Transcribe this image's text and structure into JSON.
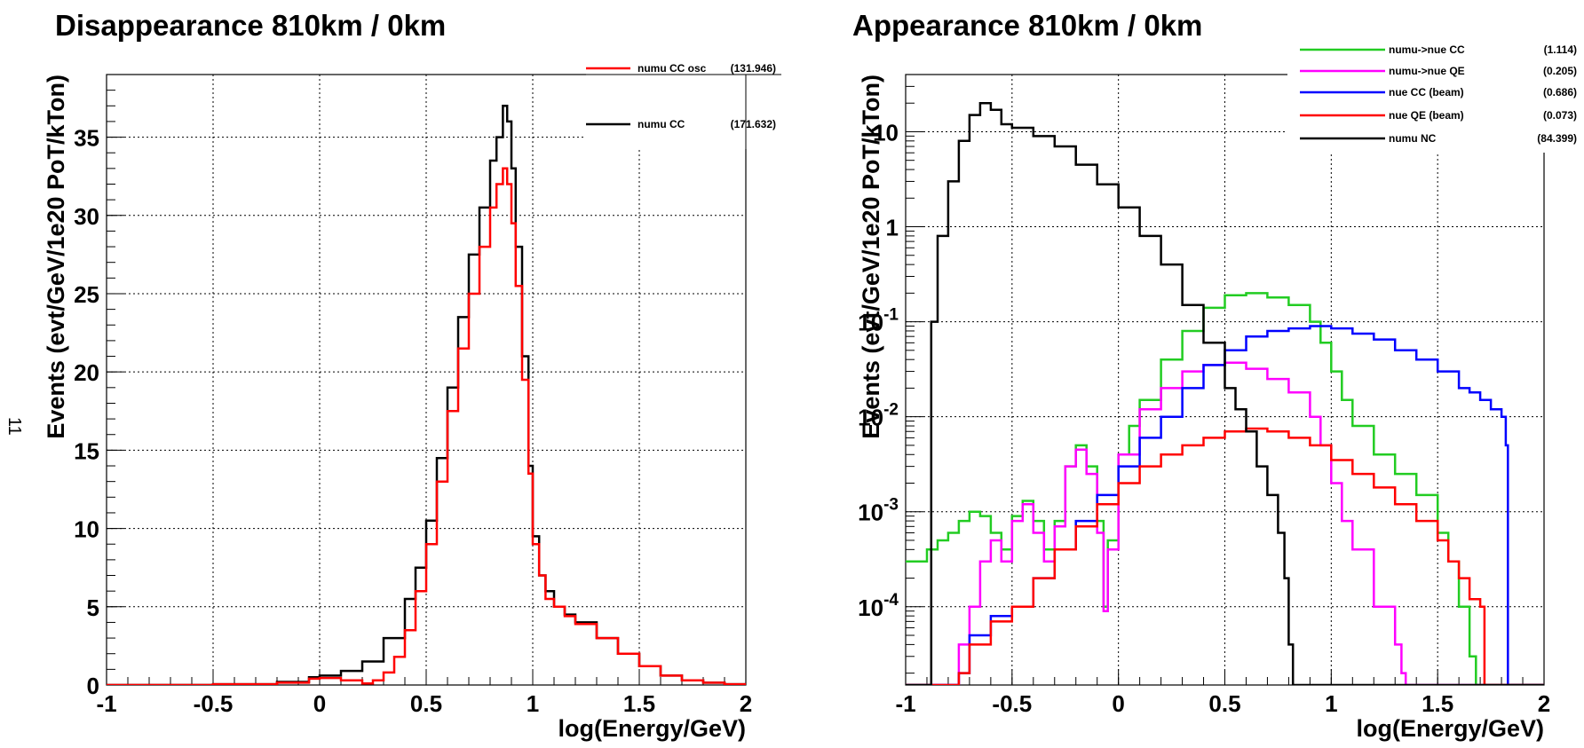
{
  "margin_mark": "11",
  "chart_data": [
    {
      "type": "line",
      "title": "Disappearance 810km / 0km",
      "xlabel": "log(Energy/GeV)",
      "ylabel": "Events (evt/GeV/1e20 PoT/kTon)",
      "xlim": [
        -1,
        2
      ],
      "ylim": [
        0,
        39
      ],
      "yscale": "linear",
      "grid": true,
      "legend_position": "top-right",
      "x_ticks": [
        {
          "value": -1,
          "label": "-1"
        },
        {
          "value": -0.5,
          "label": "-0.5"
        },
        {
          "value": 0,
          "label": "0"
        },
        {
          "value": 0.5,
          "label": "0.5"
        },
        {
          "value": 1,
          "label": "1"
        },
        {
          "value": 1.5,
          "label": "1.5"
        },
        {
          "value": 2,
          "label": "2"
        }
      ],
      "y_ticks": [
        {
          "value": 0,
          "label": "0"
        },
        {
          "value": 5,
          "label": "5"
        },
        {
          "value": 10,
          "label": "10"
        },
        {
          "value": 15,
          "label": "15"
        },
        {
          "value": 20,
          "label": "20"
        },
        {
          "value": 25,
          "label": "25"
        },
        {
          "value": 30,
          "label": "30"
        },
        {
          "value": 35,
          "label": "35"
        }
      ],
      "series": [
        {
          "name": "numu CC",
          "value_label": "(171.632)",
          "color": "#000000",
          "x": [
            -1,
            -0.5,
            -0.2,
            -0.05,
            0.0,
            0.1,
            0.2,
            0.3,
            0.4,
            0.45,
            0.5,
            0.55,
            0.6,
            0.65,
            0.7,
            0.75,
            0.8,
            0.83,
            0.86,
            0.88,
            0.9,
            0.92,
            0.95,
            0.98,
            1.0,
            1.03,
            1.06,
            1.1,
            1.15,
            1.2,
            1.3,
            1.4,
            1.5,
            1.6,
            1.7,
            1.8,
            1.9,
            2.0
          ],
          "y": [
            0.0,
            0.05,
            0.2,
            0.5,
            0.6,
            0.9,
            1.5,
            3.0,
            5.5,
            7.5,
            10.5,
            14.5,
            19.0,
            23.5,
            27.5,
            30.5,
            33.5,
            35.0,
            37.0,
            36.0,
            33.0,
            28.0,
            21.0,
            14.0,
            9.5,
            7.0,
            6.0,
            5.0,
            4.5,
            4.0,
            3.0,
            2.0,
            1.2,
            0.6,
            0.3,
            0.15,
            0.05,
            0.0
          ]
        },
        {
          "name": "numu CC osc",
          "value_label": "(131.946)",
          "color": "#ff0000",
          "x": [
            -1,
            -0.5,
            -0.2,
            -0.05,
            0.0,
            0.1,
            0.2,
            0.25,
            0.3,
            0.35,
            0.4,
            0.45,
            0.5,
            0.55,
            0.6,
            0.65,
            0.7,
            0.75,
            0.8,
            0.83,
            0.86,
            0.88,
            0.9,
            0.92,
            0.95,
            0.98,
            1.0,
            1.03,
            1.06,
            1.1,
            1.15,
            1.2,
            1.3,
            1.4,
            1.5,
            1.6,
            1.7,
            1.8,
            1.9,
            2.0
          ],
          "y": [
            0.0,
            0.05,
            0.15,
            0.4,
            0.45,
            0.3,
            0.1,
            0.3,
            0.8,
            1.8,
            3.5,
            6.0,
            9.0,
            13.0,
            17.5,
            21.5,
            25.0,
            28.0,
            30.5,
            32.0,
            33.0,
            32.0,
            29.5,
            25.5,
            19.5,
            13.5,
            9.0,
            7.0,
            5.5,
            5.0,
            4.4,
            3.9,
            3.0,
            2.0,
            1.2,
            0.6,
            0.3,
            0.15,
            0.05,
            0.0
          ]
        }
      ]
    },
    {
      "type": "line",
      "title": "Appearance 810km / 0km",
      "xlabel": "log(Energy/GeV)",
      "ylabel": "Events (evt/GeV/1e20 PoT/kTon)",
      "xlim": [
        -1,
        2
      ],
      "ylim": [
        1.5e-05,
        40
      ],
      "yscale": "log",
      "grid": true,
      "legend_position": "top-right",
      "x_ticks": [
        {
          "value": -1,
          "label": "-1"
        },
        {
          "value": -0.5,
          "label": "-0.5"
        },
        {
          "value": 0,
          "label": "0"
        },
        {
          "value": 0.5,
          "label": "0.5"
        },
        {
          "value": 1,
          "label": "1"
        },
        {
          "value": 1.5,
          "label": "1.5"
        },
        {
          "value": 2,
          "label": "2"
        }
      ],
      "y_ticks": [
        {
          "value": 0.0001,
          "base": "10",
          "exp": "-4"
        },
        {
          "value": 0.001,
          "base": "10",
          "exp": "-3"
        },
        {
          "value": 0.01,
          "base": "10",
          "exp": "-2"
        },
        {
          "value": 0.1,
          "base": "10",
          "exp": "-1"
        },
        {
          "value": 1,
          "base": "1",
          "exp": ""
        },
        {
          "value": 10,
          "base": "10",
          "exp": ""
        }
      ],
      "series": [
        {
          "name": "numu->nue CC",
          "value_label": "(1.114)",
          "color": "#22cc22",
          "x": [
            -1,
            -0.9,
            -0.85,
            -0.8,
            -0.75,
            -0.7,
            -0.65,
            -0.6,
            -0.55,
            -0.5,
            -0.45,
            -0.4,
            -0.35,
            -0.3,
            -0.25,
            -0.2,
            -0.15,
            -0.1,
            -0.07,
            -0.05,
            0.0,
            0.05,
            0.1,
            0.2,
            0.3,
            0.4,
            0.5,
            0.6,
            0.7,
            0.8,
            0.9,
            0.95,
            1.0,
            1.05,
            1.1,
            1.2,
            1.3,
            1.4,
            1.5,
            1.55,
            1.6,
            1.65,
            1.68,
            1.7,
            2.0
          ],
          "y": [
            0.0003,
            0.0004,
            0.0005,
            0.0006,
            0.0008,
            0.001,
            0.0009,
            0.0006,
            0.0004,
            0.0009,
            0.0013,
            0.0008,
            0.0004,
            0.0008,
            0.003,
            0.005,
            0.003,
            0.0008,
            0.0001,
            0.0005,
            0.004,
            0.008,
            0.015,
            0.04,
            0.08,
            0.14,
            0.19,
            0.2,
            0.18,
            0.15,
            0.1,
            0.06,
            0.03,
            0.015,
            0.008,
            0.004,
            0.0025,
            0.0015,
            0.0006,
            0.0003,
            0.0001,
            3e-05,
            1.5e-05,
            0,
            0
          ]
        },
        {
          "name": "numu->nue QE",
          "value_label": "(0.205)",
          "color": "#ff00ff",
          "x": [
            -1,
            -0.85,
            -0.8,
            -0.75,
            -0.7,
            -0.65,
            -0.6,
            -0.55,
            -0.5,
            -0.45,
            -0.4,
            -0.35,
            -0.3,
            -0.25,
            -0.2,
            -0.15,
            -0.1,
            -0.07,
            -0.05,
            0.0,
            0.1,
            0.2,
            0.3,
            0.4,
            0.5,
            0.6,
            0.7,
            0.8,
            0.9,
            0.95,
            1.0,
            1.05,
            1.1,
            1.2,
            1.3,
            1.33,
            1.35,
            2.0
          ],
          "y": [
            0,
            0,
            1.5e-05,
            4e-05,
            0.0001,
            0.0003,
            0.0005,
            0.0003,
            0.0008,
            0.0012,
            0.0006,
            0.0003,
            0.0007,
            0.003,
            0.0045,
            0.0025,
            0.0006,
            9e-05,
            0.0004,
            0.004,
            0.012,
            0.02,
            0.03,
            0.035,
            0.037,
            0.032,
            0.025,
            0.018,
            0.01,
            0.005,
            0.002,
            0.0008,
            0.0004,
            0.0001,
            4e-05,
            2e-05,
            0,
            0
          ]
        },
        {
          "name": "nue CC (beam)",
          "value_label": "(0.686)",
          "color": "#0000ff",
          "x": [
            -1,
            -0.8,
            -0.75,
            -0.7,
            -0.6,
            -0.5,
            -0.4,
            -0.3,
            -0.2,
            -0.1,
            0.0,
            0.1,
            0.2,
            0.3,
            0.4,
            0.5,
            0.6,
            0.7,
            0.8,
            0.9,
            1.0,
            1.1,
            1.2,
            1.3,
            1.4,
            1.5,
            1.6,
            1.65,
            1.7,
            1.75,
            1.8,
            1.82,
            1.83,
            2.0
          ],
          "y": [
            0,
            0,
            2e-05,
            5e-05,
            8e-05,
            0.0001,
            0.0002,
            0.0004,
            0.0008,
            0.0015,
            0.003,
            0.006,
            0.01,
            0.02,
            0.035,
            0.05,
            0.07,
            0.08,
            0.085,
            0.09,
            0.085,
            0.075,
            0.065,
            0.05,
            0.04,
            0.03,
            0.02,
            0.018,
            0.015,
            0.012,
            0.01,
            0.005,
            0,
            0
          ]
        },
        {
          "name": "nue QE (beam)",
          "value_label": "(0.073)",
          "color": "#ff0000",
          "x": [
            -1,
            -0.8,
            -0.75,
            -0.7,
            -0.6,
            -0.5,
            -0.4,
            -0.3,
            -0.2,
            -0.1,
            0.0,
            0.1,
            0.2,
            0.3,
            0.4,
            0.5,
            0.6,
            0.7,
            0.8,
            0.9,
            1.0,
            1.1,
            1.2,
            1.3,
            1.4,
            1.5,
            1.55,
            1.6,
            1.65,
            1.7,
            1.72,
            2.0
          ],
          "y": [
            0,
            0,
            2e-05,
            4e-05,
            7e-05,
            0.0001,
            0.0002,
            0.0004,
            0.0007,
            0.0012,
            0.002,
            0.003,
            0.004,
            0.005,
            0.006,
            0.007,
            0.0075,
            0.007,
            0.006,
            0.005,
            0.0035,
            0.0025,
            0.0018,
            0.0012,
            0.0008,
            0.0005,
            0.0003,
            0.0002,
            0.00012,
            0.0001,
            0,
            0
          ]
        },
        {
          "name": "numu NC",
          "value_label": "(84.399)",
          "color": "#000000",
          "x": [
            -1,
            -0.92,
            -0.9,
            -0.88,
            -0.85,
            -0.8,
            -0.75,
            -0.7,
            -0.65,
            -0.6,
            -0.55,
            -0.5,
            -0.4,
            -0.3,
            -0.2,
            -0.1,
            0.0,
            0.1,
            0.2,
            0.3,
            0.4,
            0.5,
            0.55,
            0.6,
            0.65,
            0.7,
            0.75,
            0.78,
            0.8,
            0.82,
            2.0
          ],
          "y": [
            0,
            0,
            1e-05,
            0.1,
            0.8,
            3.0,
            8.0,
            15.0,
            20.0,
            17.0,
            12.0,
            11.0,
            9.0,
            7.0,
            4.5,
            2.8,
            1.6,
            0.8,
            0.4,
            0.15,
            0.06,
            0.02,
            0.012,
            0.007,
            0.003,
            0.0015,
            0.0006,
            0.0002,
            4e-05,
            0,
            0
          ]
        }
      ]
    }
  ]
}
